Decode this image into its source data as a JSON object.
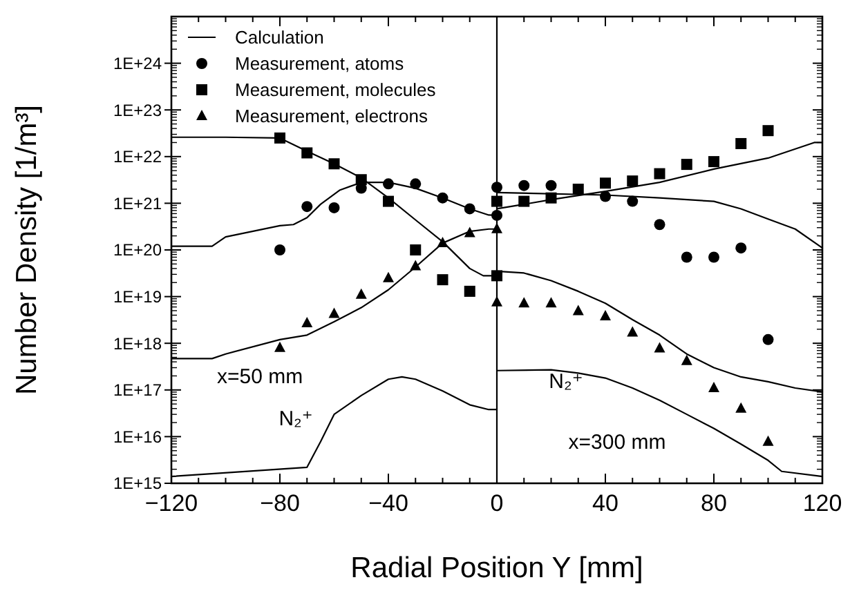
{
  "chart_data": {
    "type": "line",
    "xlabel": "Radial Position Y [mm]",
    "ylabel": "Number Density [1/m³]",
    "log": "y",
    "xlim": [
      -120,
      120
    ],
    "xticks": [
      -120,
      {
        "value": -110,
        "label": null
      },
      {
        "value": -100,
        "label": null
      },
      {
        "value": -90,
        "label": null
      },
      -80,
      {
        "value": -70,
        "label": null
      },
      {
        "value": -60,
        "label": null
      },
      {
        "value": -50,
        "label": null
      },
      -40,
      {
        "value": -30,
        "label": null
      },
      {
        "value": -20,
        "label": null
      },
      {
        "value": -10,
        "label": null
      },
      0,
      {
        "value": 10,
        "label": null
      },
      {
        "value": 20,
        "label": null
      },
      {
        "value": 30,
        "label": null
      },
      40,
      {
        "value": 50,
        "label": null
      },
      {
        "value": 60,
        "label": null
      },
      {
        "value": 70,
        "label": null
      },
      80,
      {
        "value": 90,
        "label": null
      },
      {
        "value": 100,
        "label": null
      },
      {
        "value": 110,
        "label": null
      },
      120
    ],
    "ylim": [
      1000000000000000.0,
      1e+25
    ],
    "yticks": [
      {
        "value": 1000000000000000.0,
        "label": "1E+15"
      },
      {
        "value": 1e+16,
        "label": "1E+16"
      },
      {
        "value": 1e+17,
        "label": "1E+17"
      },
      {
        "value": 1e+18,
        "label": "1E+18"
      },
      {
        "value": 1e+19,
        "label": "1E+19"
      },
      {
        "value": 1e+20,
        "label": "1E+20"
      },
      {
        "value": 1e+21,
        "label": "1E+21"
      },
      {
        "value": 1e+22,
        "label": "1E+22"
      },
      {
        "value": 1e+23,
        "label": "1E+23"
      },
      {
        "value": 1e+24,
        "label": "1E+24"
      }
    ],
    "grid": false,
    "legend": "top left",
    "ref_lines": [
      {
        "axis": "x",
        "value": 0,
        "color": "#000000"
      }
    ],
    "annotations": [
      "x=50 mm",
      "N₂⁺",
      "N₂⁺",
      "x=300 mm"
    ],
    "series": [
      {
        "name": "Calculation",
        "color": "#000000",
        "x": [
          -120,
          -100,
          -80,
          -70,
          -60,
          -50,
          -40,
          -30,
          -20,
          -10,
          -5,
          0
        ],
        "values": [
          2.6e+22,
          2.6e+22,
          2.5e+22,
          1.3e+22,
          7e+21,
          3.5e+21,
          1.3e+21,
          4.4e+20,
          1.5e+20,
          4e+19,
          2.8e+19,
          2.8e+19
        ]
      },
      {
        "name": "Measurement, atoms",
        "type": "scatter",
        "marker": "circle",
        "color": "#000000",
        "x": [
          -80,
          -70,
          -60,
          -50,
          -40,
          -30,
          -20,
          -10,
          0,
          0,
          10,
          20,
          40,
          50,
          60,
          70,
          80,
          90,
          100
        ],
        "values": [
          1e+20,
          8.5e+20,
          8e+20,
          2.1e+21,
          2.6e+21,
          2.6e+21,
          1.3e+21,
          7.6e+20,
          2.2e+21,
          5.5e+20,
          2.4e+21,
          2.4e+21,
          1.4e+21,
          1.1e+21,
          3.5e+20,
          7e+19,
          7e+19,
          1.1e+20,
          1.2e+18
        ]
      },
      {
        "name": "Measurement, molecules",
        "type": "scatter",
        "marker": "square",
        "color": "#000000",
        "x": [
          -80,
          -70,
          -60,
          -50,
          -40,
          -30,
          -20,
          -10,
          0,
          0,
          10,
          20,
          30,
          40,
          50,
          60,
          70,
          80,
          90,
          100
        ],
        "values": [
          2.5e+22,
          1.2e+22,
          7e+21,
          3.2e+21,
          1.1e+21,
          1e+20,
          2.3e+19,
          1.3e+19,
          1.1e+21,
          2.8e+19,
          1.1e+21,
          1.3e+21,
          2e+21,
          2.7e+21,
          3e+21,
          4.3e+21,
          6.8e+21,
          7.8e+21,
          1.9e+22,
          3.6e+22
        ]
      },
      {
        "name": "Measurement, electrons",
        "type": "scatter",
        "marker": "triangle",
        "color": "#000000",
        "x": [
          -80,
          -70,
          -60,
          -50,
          -40,
          -30,
          -20,
          -10,
          0,
          0,
          10,
          20,
          30,
          40,
          50,
          60,
          70,
          80,
          90,
          100
        ],
        "values": [
          8e+17,
          2.7e+18,
          4.3e+18,
          1.1e+19,
          2.5e+19,
          4.5e+19,
          1.4e+20,
          2.3e+20,
          2.8e+20,
          7.6e+18,
          7.2e+18,
          7.2e+18,
          4.9e+18,
          3.8e+18,
          1.7e+18,
          7.8e+17,
          4.2e+17,
          1.1e+17,
          4e+16,
          7800000000000000.0
        ]
      },
      {
        "color": "#000000",
        "x": [
          -120,
          -105,
          -100,
          -80,
          -75,
          -70,
          -65,
          -58,
          -50,
          -40,
          -30,
          -20,
          -10,
          -3,
          0
        ],
        "values": [
          1.2e+20,
          1.2e+20,
          1.9e+20,
          3.3e+20,
          3.5e+20,
          4.9e+20,
          9.5e+20,
          1.9e+21,
          2.8e+21,
          2.8e+21,
          2.1e+21,
          1.3e+21,
          7.6e+20,
          5.6e+20,
          5.5e+20
        ]
      },
      {
        "color": "#000000",
        "x": [
          -120,
          -105,
          -100,
          -80,
          -70,
          -60,
          -50,
          -40,
          -30,
          -20,
          -10,
          -3,
          0
        ],
        "values": [
          4.7e+17,
          4.7e+17,
          5.9e+17,
          1.2e+18,
          1.5e+18,
          2.9e+18,
          5.8e+18,
          1.4e+19,
          4.3e+19,
          1.4e+20,
          2.5e+20,
          2.8e+20,
          2.8e+20
        ]
      },
      {
        "color": "#000000",
        "x": [
          -120,
          -70,
          -65,
          -60,
          -50,
          -40,
          -35,
          -30,
          -20,
          -10,
          -3,
          0
        ],
        "values": [
          1400000000000000.0,
          2200000000000000.0,
          7800000000000000.0,
          3e+16,
          7.6e+16,
          1.7e+17,
          1.9e+17,
          1.7e+17,
          9.5e+16,
          4.8e+16,
          3.8e+16,
          3.8e+16
        ]
      },
      {
        "color": "#000000",
        "x": [
          0,
          10,
          20,
          40,
          60,
          80,
          100,
          117,
          120
        ],
        "values": [
          7.6e+20,
          9.5e+20,
          1.2e+21,
          1.8e+21,
          2.8e+21,
          5.4e+21,
          9.3e+21,
          2e+22,
          2e+22
        ]
      },
      {
        "color": "#000000",
        "x": [
          0,
          40,
          60,
          80,
          90,
          100,
          110,
          120
        ],
        "values": [
          1.7e+21,
          1.5e+21,
          1.3e+21,
          1.1e+21,
          7.6e+20,
          4.6e+20,
          2.8e+20,
          1.1e+20
        ]
      },
      {
        "color": "#000000",
        "x": [
          0,
          10,
          20,
          30,
          40,
          50,
          60,
          70,
          80,
          90,
          100,
          110,
          120
        ],
        "values": [
          3.5e+19,
          3.2e+19,
          2.2e+19,
          1.3e+19,
          7.2e+18,
          3.2e+18,
          1.5e+18,
          5.9e+17,
          3e+17,
          1.9e+17,
          1.5e+17,
          1.1e+17,
          9.1e+16
        ]
      },
      {
        "color": "#000000",
        "x": [
          0,
          20,
          30,
          40,
          50,
          60,
          70,
          80,
          90,
          100,
          105,
          120
        ],
        "values": [
          2.6e+17,
          2.7e+17,
          2.3e+17,
          1.8e+17,
          1.1e+17,
          6e+16,
          3e+16,
          1.5e+16,
          6900000000000000.0,
          3100000000000000.0,
          1800000000000000.0,
          1400000000000000.0
        ]
      }
    ]
  }
}
